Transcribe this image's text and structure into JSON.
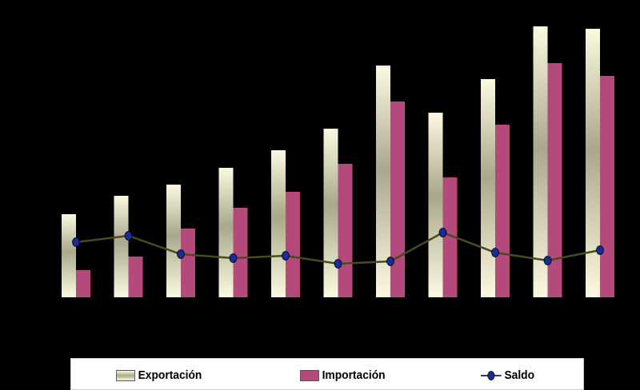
{
  "chart_data": {
    "type": "bar",
    "title": "",
    "xlabel": "",
    "ylabel": "",
    "ylim": [
      0,
      345
    ],
    "grid": false,
    "legend_position": "bottom",
    "series": [
      {
        "name": "Exportación",
        "kind": "bar",
        "color": "#f7f5d8",
        "values": [
          104,
          127,
          141,
          162,
          184,
          211,
          290,
          231,
          273,
          339,
          336
        ]
      },
      {
        "name": "Importación",
        "kind": "bar",
        "color": "#b44a7c",
        "values": [
          34,
          51,
          86,
          112,
          132,
          167,
          245,
          150,
          216,
          293,
          277
        ]
      },
      {
        "name": "Saldo",
        "kind": "line",
        "color": "#4a4a1e",
        "marker_color": "#1a2a9a",
        "values": [
          69,
          77,
          54,
          49,
          52,
          42,
          45,
          81,
          56,
          46,
          59
        ]
      }
    ]
  },
  "legend": {
    "exportacion": "Exportación",
    "importacion": "Importación",
    "saldo": "Saldo"
  }
}
